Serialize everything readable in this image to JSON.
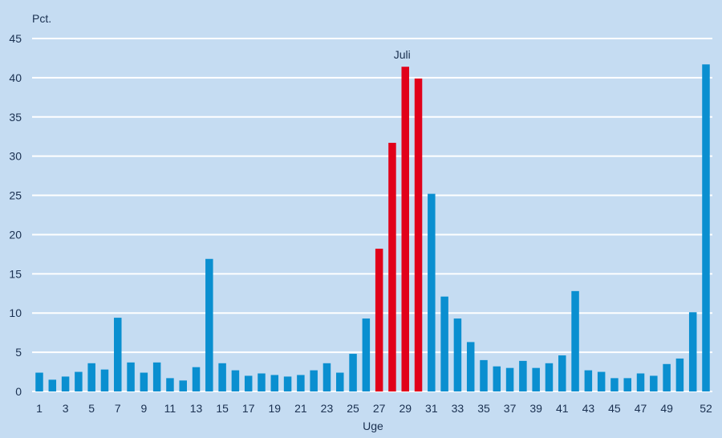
{
  "chart_data": {
    "type": "bar",
    "ylabel": "Pct.",
    "xlabel": "Uge",
    "ylim": [
      0,
      45
    ],
    "yticks": [
      0,
      5,
      10,
      15,
      20,
      25,
      30,
      35,
      40,
      45
    ],
    "grid": "horizontal",
    "categories": [
      1,
      2,
      3,
      4,
      5,
      6,
      7,
      8,
      9,
      10,
      11,
      12,
      13,
      14,
      15,
      16,
      17,
      18,
      19,
      20,
      21,
      22,
      23,
      24,
      25,
      26,
      27,
      28,
      29,
      30,
      31,
      32,
      33,
      34,
      35,
      36,
      37,
      38,
      39,
      40,
      41,
      42,
      43,
      44,
      45,
      46,
      47,
      48,
      49,
      50,
      51,
      52
    ],
    "xtick_labels": [
      "1",
      "3",
      "5",
      "7",
      "9",
      "11",
      "13",
      "15",
      "17",
      "19",
      "21",
      "23",
      "25",
      "27",
      "29",
      "31",
      "33",
      "35",
      "37",
      "39",
      "41",
      "43",
      "45",
      "47",
      "49",
      "52"
    ],
    "values": [
      2.4,
      1.5,
      1.9,
      2.5,
      3.6,
      2.8,
      9.4,
      3.7,
      2.4,
      3.7,
      1.7,
      1.4,
      3.1,
      16.9,
      3.6,
      2.7,
      2.0,
      2.3,
      2.1,
      1.9,
      2.1,
      2.7,
      3.6,
      2.4,
      4.8,
      9.3,
      18.2,
      31.7,
      41.4,
      39.9,
      25.2,
      12.1,
      9.3,
      6.3,
      4.0,
      3.2,
      3.0,
      3.9,
      3.0,
      3.6,
      4.6,
      12.8,
      2.7,
      2.5,
      1.7,
      1.7,
      2.3,
      2.0,
      3.5,
      4.2,
      10.1,
      41.7
    ],
    "colors": {
      "default": "#0a8fd0",
      "highlight": "#e1001a"
    },
    "highlight_categories": [
      27,
      28,
      29,
      30
    ],
    "annotations": [
      {
        "text": "Juli",
        "category": 29
      }
    ]
  }
}
